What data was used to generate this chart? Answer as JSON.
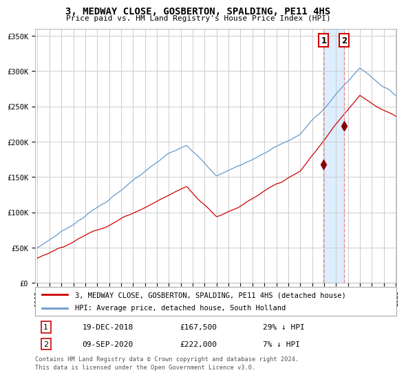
{
  "title": "3, MEDWAY CLOSE, GOSBERTON, SPALDING, PE11 4HS",
  "subtitle": "Price paid vs. HM Land Registry's House Price Index (HPI)",
  "legend_line1": "3, MEDWAY CLOSE, GOSBERTON, SPALDING, PE11 4HS (detached house)",
  "legend_line2": "HPI: Average price, detached house, South Holland",
  "transaction1_date": "19-DEC-2018",
  "transaction1_price": 167500,
  "transaction1_label": "29% ↓ HPI",
  "transaction2_date": "09-SEP-2020",
  "transaction2_price": 222000,
  "transaction2_label": "7% ↓ HPI",
  "footnote1": "Contains HM Land Registry data © Crown copyright and database right 2024.",
  "footnote2": "This data is licensed under the Open Government Licence v3.0.",
  "hpi_color": "#6699cc",
  "price_color": "#cc0000",
  "marker_color": "#880000",
  "shade_color": "#ddeeff",
  "vline_color": "#ee8888",
  "ylim": [
    0,
    360000
  ],
  "yticks": [
    0,
    50000,
    100000,
    150000,
    200000,
    250000,
    300000,
    350000
  ],
  "background_color": "#ffffff",
  "grid_color": "#cccccc",
  "start_year": 1995,
  "end_year": 2025,
  "t1": 2018.962,
  "t2": 2020.692
}
